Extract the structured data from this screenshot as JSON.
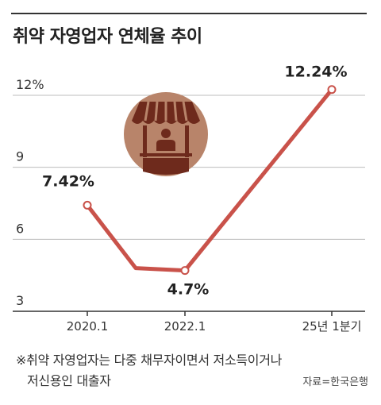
{
  "title": "취약 자영업자 연체율 추이",
  "footnote": {
    "line1": "※취약 자영업자는 다중 채무자이면서 저소득이거나",
    "line2": "저신용인 대출자"
  },
  "source": "자료=한국은행",
  "colors": {
    "line": "#c9524a",
    "grid": "#bdbdbd",
    "icon_bg": "#b8846a",
    "icon_fg": "#6e2a1c"
  },
  "icon": "market-stall-icon",
  "chart_data": {
    "type": "line",
    "title": "취약 자영업자 연체율 추이",
    "xlabel": "",
    "ylabel": "",
    "ylim": [
      3,
      13
    ],
    "y_ticks": [
      {
        "value": 12,
        "label": "12%"
      },
      {
        "value": 9,
        "label": "9"
      },
      {
        "value": 6,
        "label": "6"
      },
      {
        "value": 3,
        "label": "3"
      }
    ],
    "x_ticks": [
      "2020.1",
      "2022.1",
      "25년 1분기"
    ],
    "grid": true,
    "series": [
      {
        "points": [
          {
            "x": "2020.1",
            "y": 7.42,
            "label": "7.42%"
          },
          {
            "x": "2021.2",
            "y": 4.8,
            "label": ""
          },
          {
            "x": "2022.1",
            "y": 4.7,
            "label": "4.7%"
          },
          {
            "x": "25년 1분기",
            "y": 12.24,
            "label": "12.24%"
          }
        ]
      }
    ]
  }
}
